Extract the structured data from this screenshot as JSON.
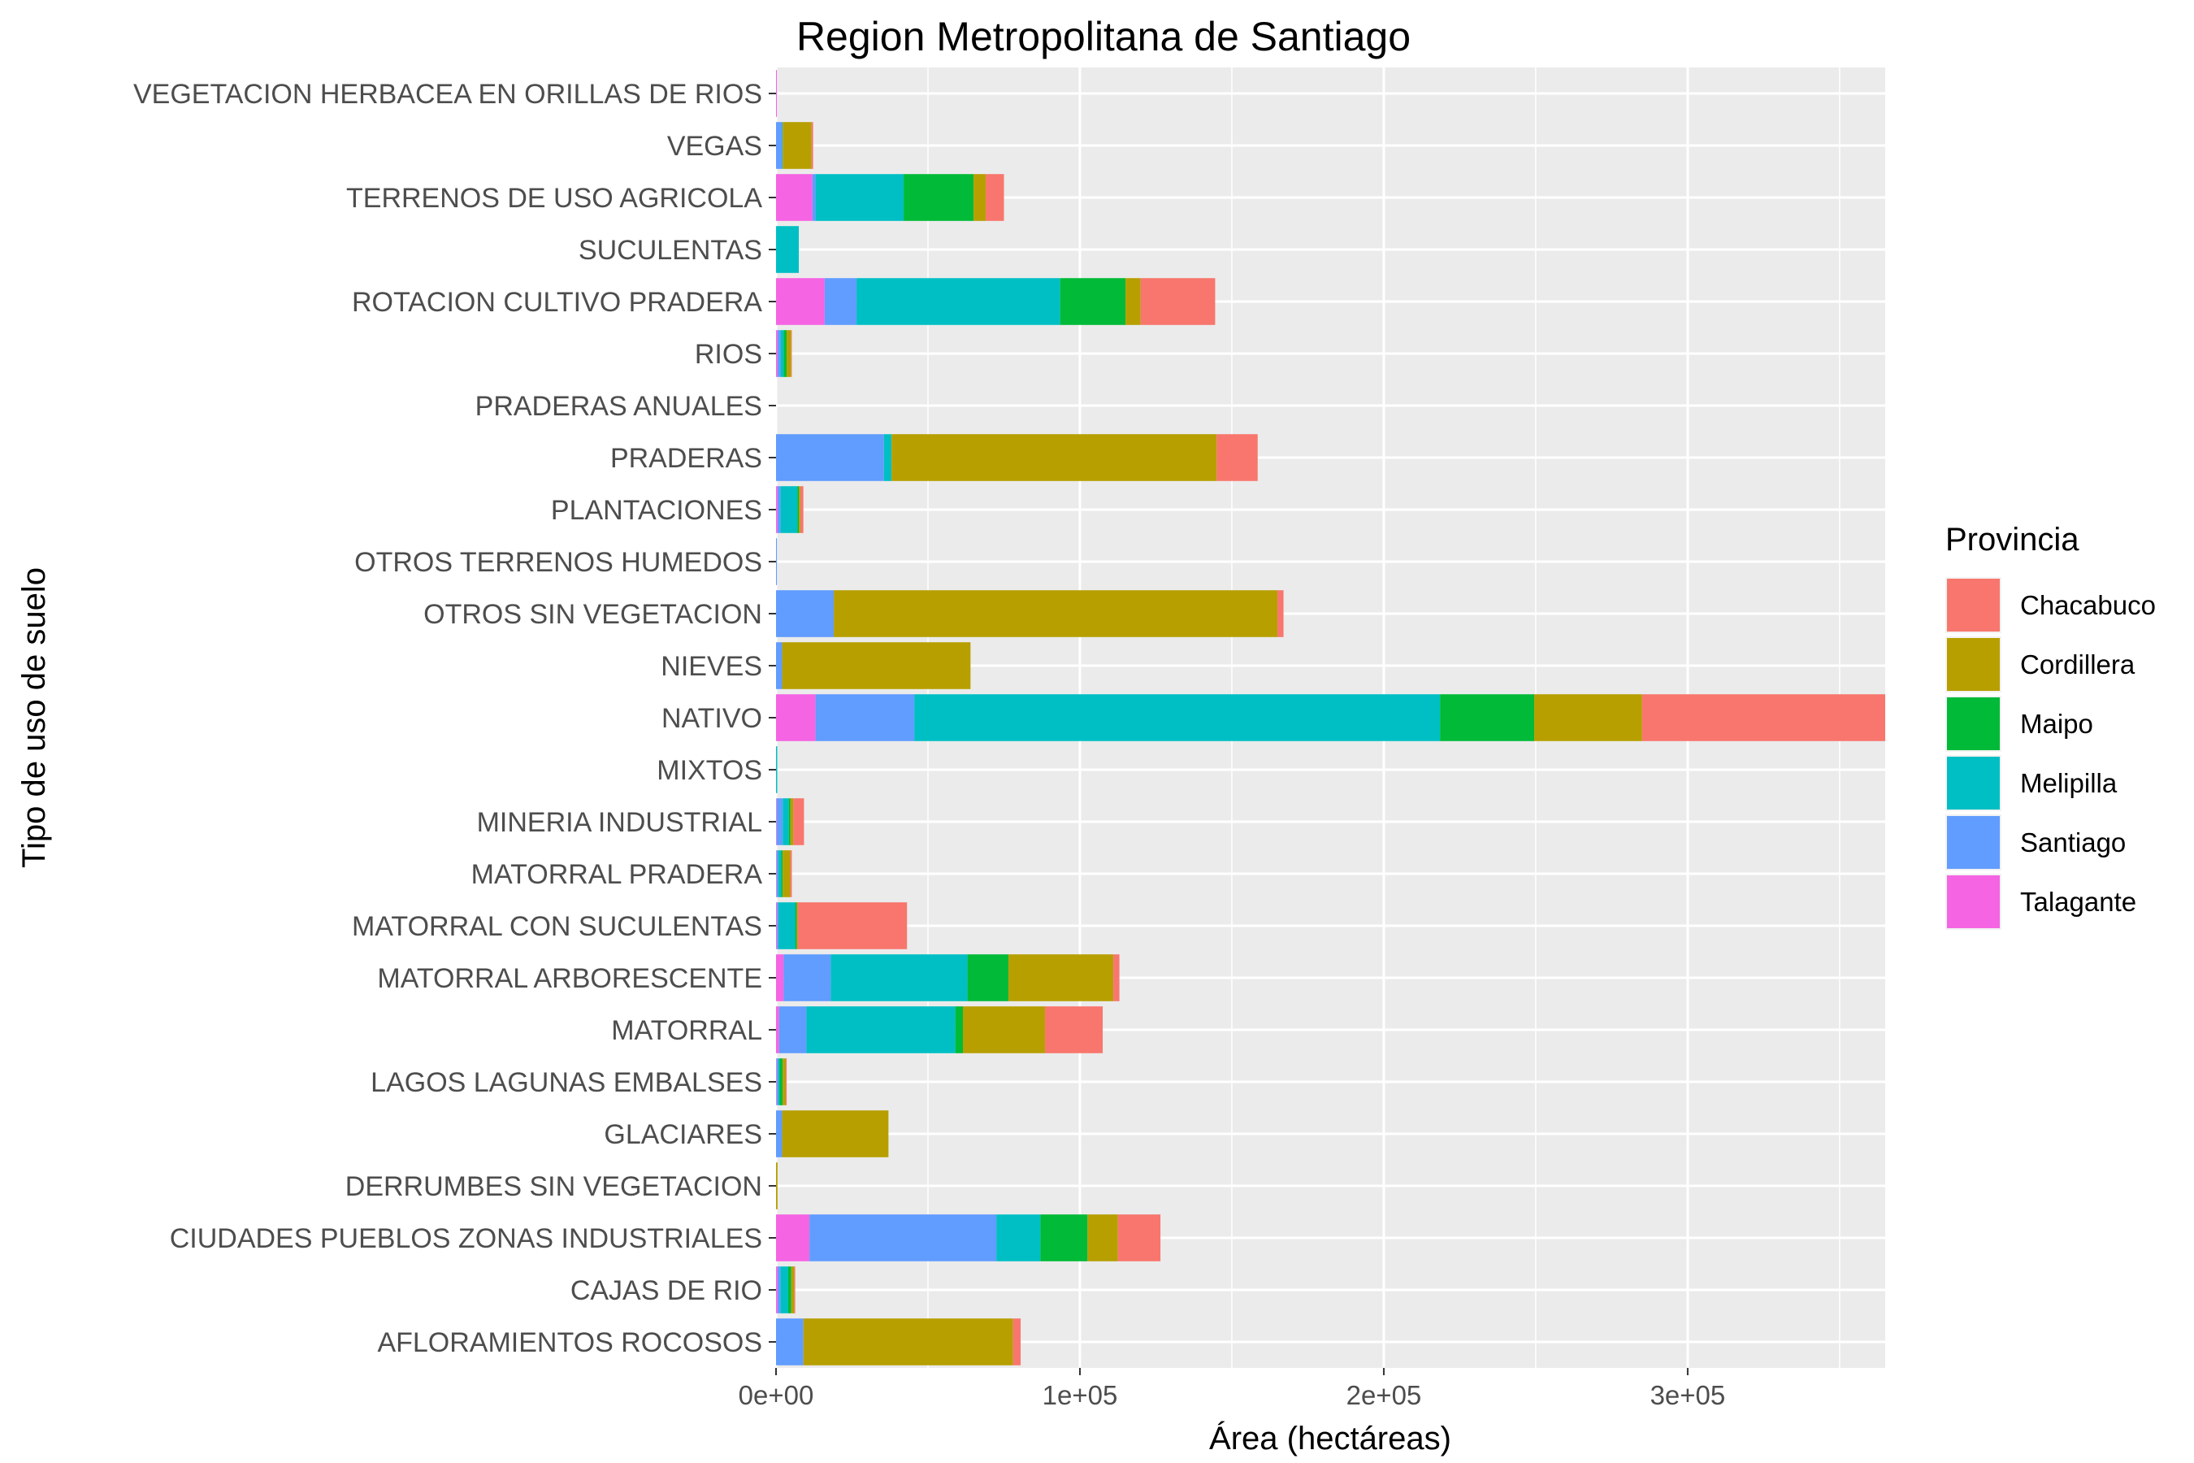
{
  "chart_data": {
    "type": "bar",
    "orientation": "horizontal",
    "stacked": true,
    "title": "Region Metropolitana de Santiago",
    "xlabel": "Área (hectáreas)",
    "ylabel": "Tipo de uso de suelo",
    "xlim": [
      0,
      365000
    ],
    "xticks": [
      0,
      100000,
      200000,
      300000
    ],
    "xtick_labels": [
      "0e+00",
      "1e+05",
      "2e+05",
      "3e+05"
    ],
    "grid": true,
    "legend_position": "right",
    "legend_title": "Provincia",
    "categories": [
      "VEGETACION HERBACEA EN ORILLAS DE RIOS",
      "VEGAS",
      "TERRENOS DE USO AGRICOLA",
      "SUCULENTAS",
      "ROTACION CULTIVO PRADERA",
      "RIOS",
      "PRADERAS ANUALES",
      "PRADERAS",
      "PLANTACIONES",
      "OTROS TERRENOS HUMEDOS",
      "OTROS SIN VEGETACION",
      "NIEVES",
      "NATIVO",
      "MIXTOS",
      "MINERIA INDUSTRIAL",
      "MATORRAL PRADERA",
      "MATORRAL CON SUCULENTAS",
      "MATORRAL ARBORESCENTE",
      "MATORRAL",
      "LAGOS LAGUNAS EMBALSES",
      "GLACIARES",
      "DERRUMBES SIN VEGETACION",
      "CIUDADES PUEBLOS ZONAS INDUSTRIALES",
      "CAJAS DE RIO",
      "AFLORAMIENTOS ROCOSOS"
    ],
    "stack_order": [
      "Talagante",
      "Santiago",
      "Melipilla",
      "Maipo",
      "Cordillera",
      "Chacabuco"
    ],
    "series": [
      {
        "name": "Chacabuco",
        "color": "#F8766D",
        "values": [
          0,
          500,
          6000,
          0,
          24500,
          200,
          0,
          13500,
          1000,
          0,
          2000,
          0,
          80000,
          0,
          3500,
          500,
          36000,
          2000,
          19000,
          300,
          0,
          0,
          14000,
          300,
          2500
        ]
      },
      {
        "name": "Cordillera",
        "color": "#B79F00",
        "values": [
          0,
          9500,
          4000,
          0,
          5000,
          1500,
          0,
          107000,
          500,
          0,
          146000,
          62000,
          35500,
          0,
          1000,
          2500,
          300,
          34500,
          27000,
          1000,
          35000,
          500,
          10000,
          1000,
          69000
        ]
      },
      {
        "name": "Maipo",
        "color": "#00BA38",
        "values": [
          0,
          0,
          23000,
          0,
          21500,
          1000,
          0,
          0,
          500,
          0,
          0,
          0,
          31000,
          0,
          500,
          500,
          500,
          13500,
          2500,
          1000,
          0,
          0,
          15500,
          1000,
          0
        ]
      },
      {
        "name": "Melipilla",
        "color": "#00BFC4",
        "values": [
          0,
          200,
          29000,
          7500,
          67000,
          1000,
          0,
          2500,
          5500,
          0,
          0,
          0,
          173000,
          400,
          2000,
          1000,
          5500,
          45000,
          49000,
          500,
          0,
          0,
          14500,
          2500,
          0
        ]
      },
      {
        "name": "Santiago",
        "color": "#619CFF",
        "values": [
          0,
          2000,
          1000,
          0,
          10500,
          1000,
          0,
          35500,
          1000,
          300,
          19000,
          2000,
          32500,
          0,
          2000,
          500,
          500,
          15500,
          9000,
          500,
          2000,
          0,
          61500,
          1000,
          9000
        ]
      },
      {
        "name": "Talagante",
        "color": "#F564E3",
        "values": [
          300,
          0,
          12000,
          0,
          16000,
          500,
          0,
          0,
          500,
          0,
          0,
          0,
          13000,
          0,
          200,
          200,
          300,
          2500,
          1000,
          200,
          0,
          0,
          11000,
          500,
          0
        ]
      }
    ]
  }
}
